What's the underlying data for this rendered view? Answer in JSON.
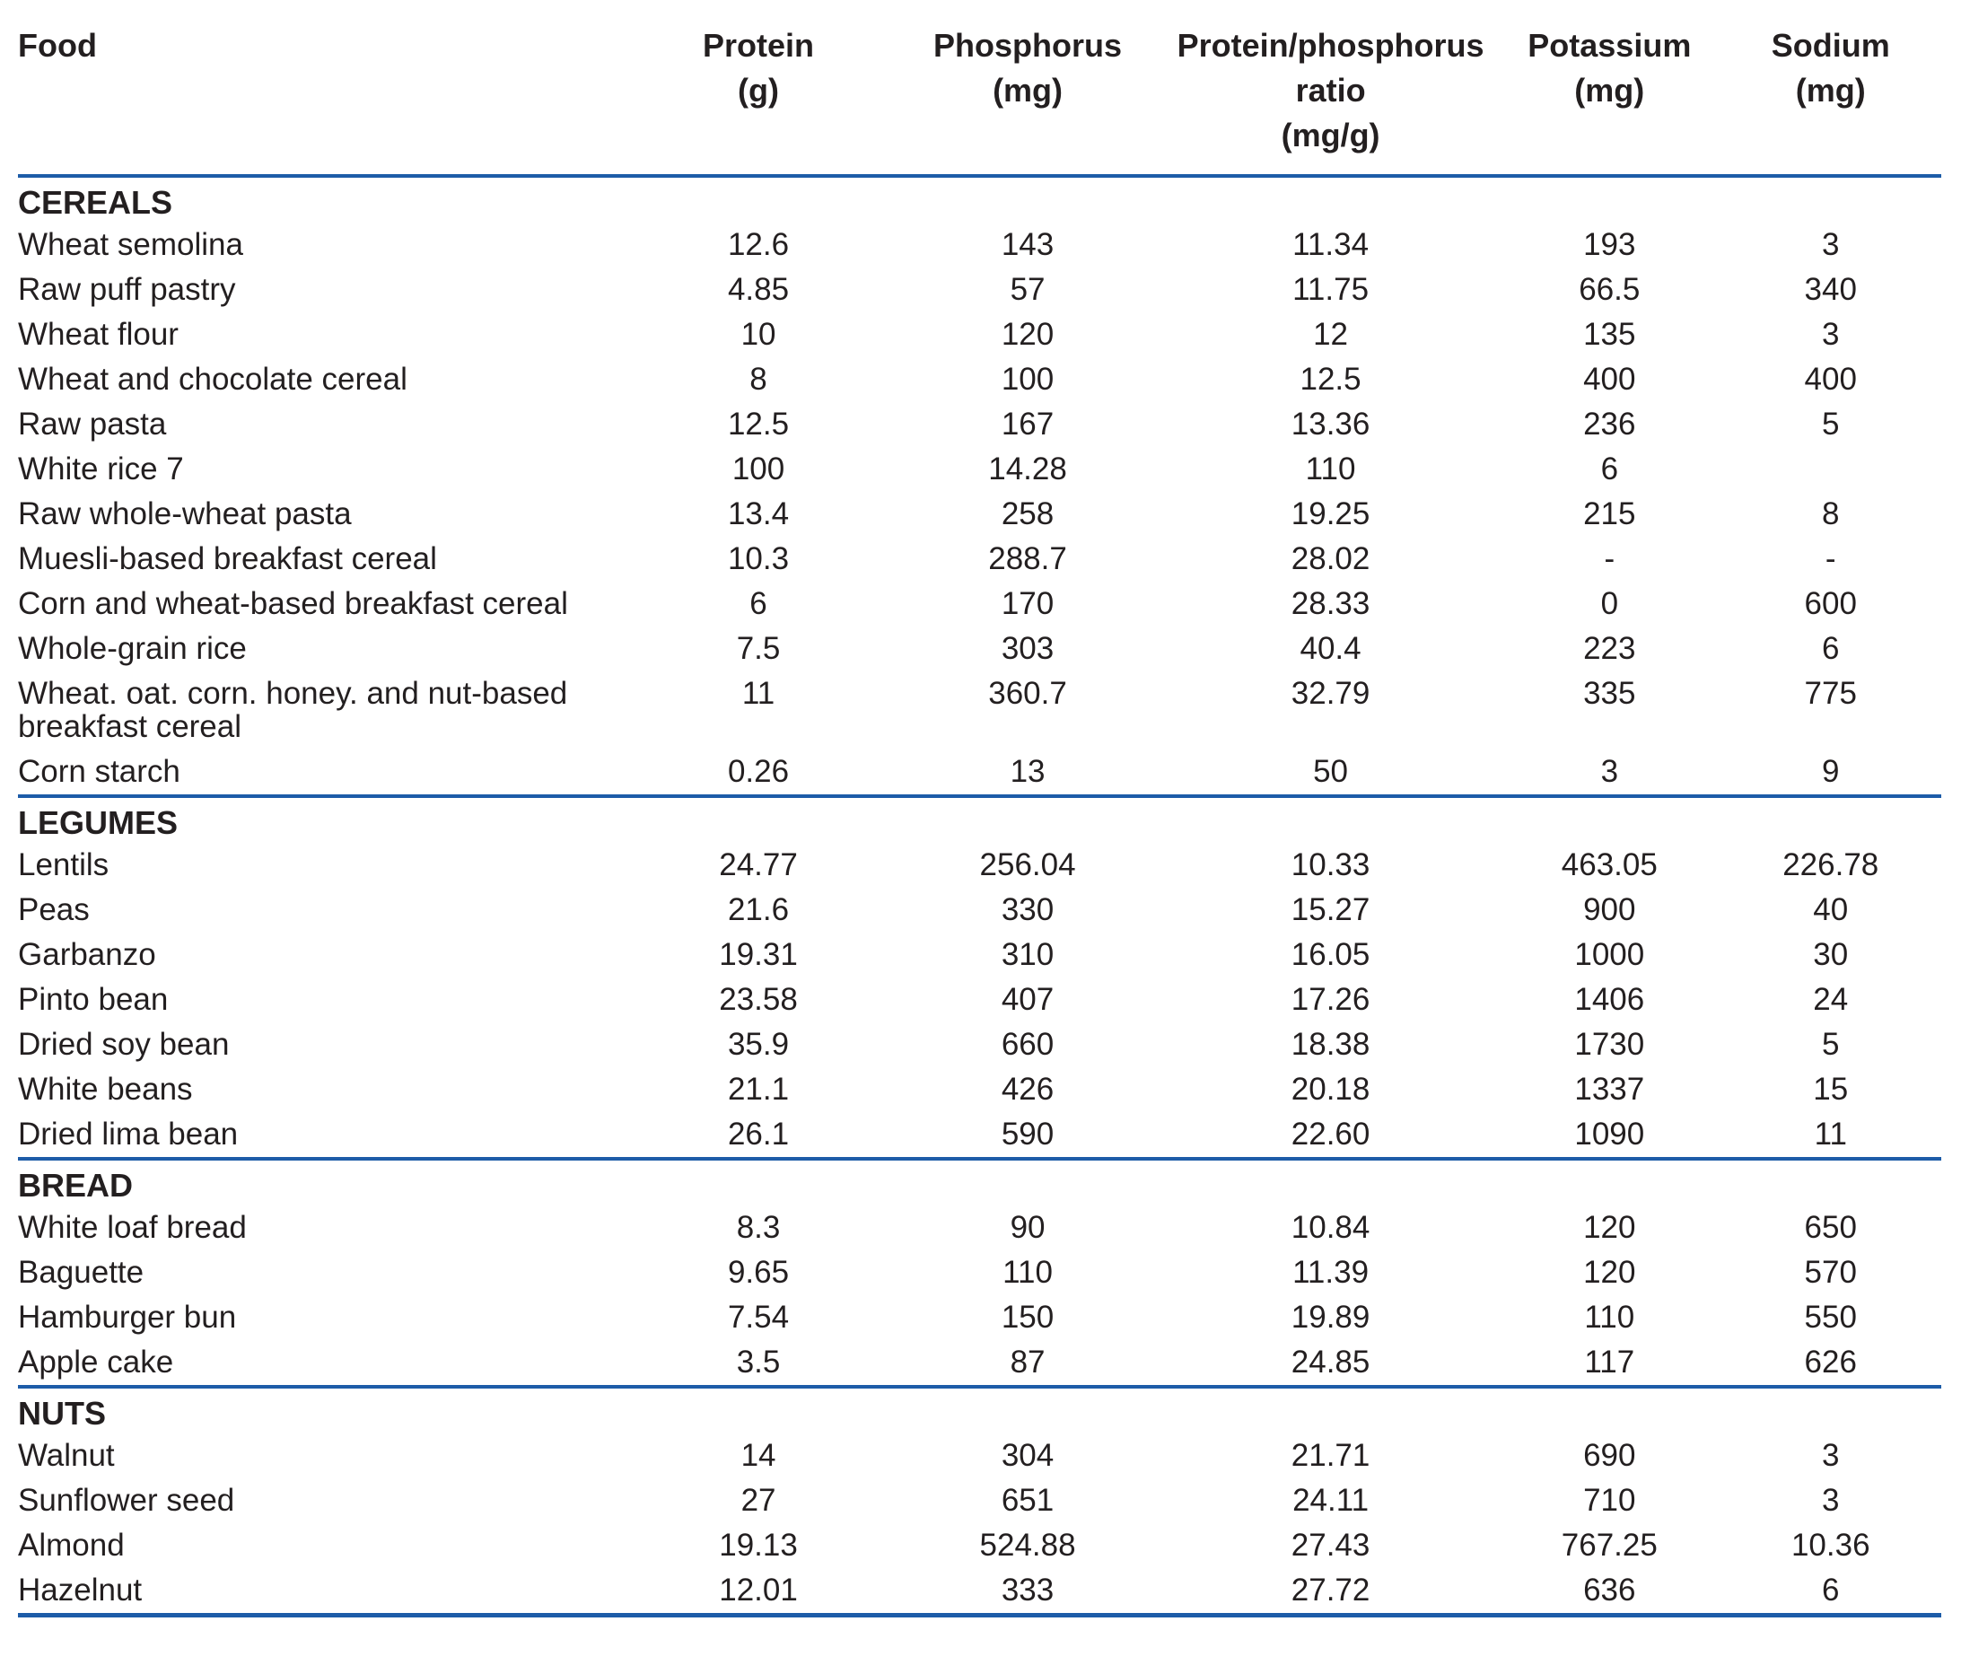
{
  "columns": [
    {
      "lines": [
        "Food",
        "",
        ""
      ]
    },
    {
      "lines": [
        "Protein",
        "(g)",
        ""
      ]
    },
    {
      "lines": [
        "Phosphorus",
        "(mg)",
        ""
      ]
    },
    {
      "lines": [
        "Protein/phosphorus",
        "ratio",
        "(mg/g)"
      ]
    },
    {
      "lines": [
        "Potassium",
        "(mg)",
        ""
      ]
    },
    {
      "lines": [
        "Sodium",
        "(mg)",
        ""
      ]
    }
  ],
  "sections": [
    {
      "name": "CEREALS",
      "rows": [
        {
          "food": "Wheat semolina",
          "values": [
            "12.6",
            "143",
            "11.34",
            "193",
            "3"
          ]
        },
        {
          "food": "Raw puff pastry",
          "values": [
            "4.85",
            "57",
            "11.75",
            "66.5",
            "340"
          ]
        },
        {
          "food": "Wheat flour",
          "values": [
            "10",
            "120",
            "12",
            "135",
            "3"
          ]
        },
        {
          "food": "Wheat and chocolate cereal",
          "values": [
            "8",
            "100",
            "12.5",
            "400",
            "400"
          ]
        },
        {
          "food": "Raw pasta",
          "values": [
            "12.5",
            "167",
            "13.36",
            "236",
            "5"
          ]
        },
        {
          "food": "White rice 7",
          "values": [
            "100",
            "14.28",
            "110",
            "6",
            ""
          ]
        },
        {
          "food": "Raw whole-wheat pasta",
          "values": [
            "13.4",
            "258",
            "19.25",
            "215",
            "8"
          ]
        },
        {
          "food": "Muesli-based breakfast cereal",
          "values": [
            "10.3",
            "288.7",
            "28.02",
            "-",
            "-"
          ]
        },
        {
          "food": "Corn and wheat-based breakfast cereal",
          "values": [
            "6",
            "170",
            "28.33",
            "0",
            "600"
          ]
        },
        {
          "food": "Whole-grain rice",
          "values": [
            "7.5",
            "303",
            "40.4",
            "223",
            "6"
          ]
        },
        {
          "food": "Wheat. oat. corn. honey. and nut-based breakfast cereal",
          "values": [
            "11",
            "360.7",
            "32.79",
            "335",
            "775"
          ]
        },
        {
          "food": "Corn starch",
          "values": [
            "0.26",
            "13",
            "50",
            "3",
            "9"
          ]
        }
      ]
    },
    {
      "name": "LEGUMES",
      "rows": [
        {
          "food": "Lentils",
          "values": [
            "24.77",
            "256.04",
            "10.33",
            "463.05",
            "226.78"
          ]
        },
        {
          "food": "Peas",
          "values": [
            "21.6",
            "330",
            "15.27",
            "900",
            "40"
          ]
        },
        {
          "food": "Garbanzo",
          "values": [
            "19.31",
            "310",
            "16.05",
            "1000",
            "30"
          ]
        },
        {
          "food": "Pinto bean",
          "values": [
            "23.58",
            "407",
            "17.26",
            "1406",
            "24"
          ]
        },
        {
          "food": "Dried soy bean",
          "values": [
            "35.9",
            "660",
            "18.38",
            "1730",
            "5"
          ]
        },
        {
          "food": "White beans",
          "values": [
            "21.1",
            "426",
            "20.18",
            "1337",
            "15"
          ]
        },
        {
          "food": "Dried lima bean",
          "values": [
            "26.1",
            "590",
            "22.60",
            "1090",
            "11"
          ]
        }
      ]
    },
    {
      "name": "BREAD",
      "rows": [
        {
          "food": "White loaf bread",
          "values": [
            "8.3",
            "90",
            "10.84",
            "120",
            "650"
          ]
        },
        {
          "food": "Baguette",
          "values": [
            "9.65",
            "110",
            "11.39",
            "120",
            "570"
          ]
        },
        {
          "food": "Hamburger bun",
          "values": [
            "7.54",
            "150",
            "19.89",
            "110",
            "550"
          ]
        },
        {
          "food": "Apple cake",
          "values": [
            "3.5",
            "87",
            "24.85",
            "117",
            "626"
          ]
        }
      ]
    },
    {
      "name": "NUTS",
      "rows": [
        {
          "food": "Walnut",
          "values": [
            "14",
            "304",
            "21.71",
            "690",
            "3"
          ]
        },
        {
          "food": "Sunflower seed",
          "values": [
            "27",
            "651",
            "24.11",
            "710",
            "3"
          ]
        },
        {
          "food": "Almond",
          "values": [
            "19.13",
            "524.88",
            "27.43",
            "767.25",
            "10.36"
          ]
        },
        {
          "food": "Hazelnut",
          "values": [
            "12.01",
            "333",
            "27.72",
            "636",
            "6"
          ]
        }
      ]
    }
  ],
  "colors": {
    "rule_blue": "#1d5ca8",
    "text": "#231f20"
  }
}
